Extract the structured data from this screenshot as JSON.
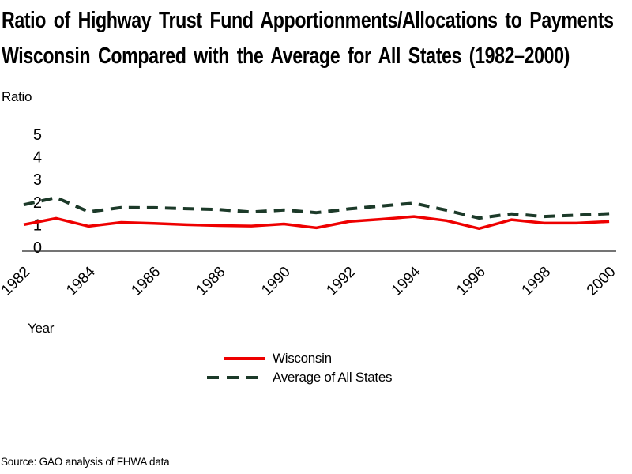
{
  "title": {
    "line1": "Ratio of Highway Trust Fund Apportionments/Allocations to Payments",
    "line2": "Wisconsin Compared with the Average for All States (1982–2000)"
  },
  "axis": {
    "y_label": "Ratio",
    "x_label": "Year"
  },
  "source_note": "Source: GAO analysis of FHWA data",
  "chart_data": {
    "type": "line",
    "title": "Ratio of Highway Trust Fund Apportionments/Allocations to Payments — Wisconsin Compared with the Average for All States (1982–2000)",
    "xlabel": "Year",
    "ylabel": "Ratio",
    "x": [
      1982,
      1983,
      1984,
      1985,
      1986,
      1987,
      1988,
      1989,
      1990,
      1991,
      1992,
      1993,
      1994,
      1995,
      1996,
      1997,
      1998,
      1999,
      2000
    ],
    "xticks": [
      1982,
      1984,
      1986,
      1988,
      1990,
      1992,
      1994,
      1996,
      1998,
      2000
    ],
    "yticks": [
      0,
      1,
      2,
      3,
      4,
      5
    ],
    "ylim": [
      0,
      5
    ],
    "grid": false,
    "legend_position": "bottom-center",
    "series": [
      {
        "name": "Wisconsin",
        "color": "#ee0000",
        "line_style": "solid",
        "values": [
          1.0,
          1.28,
          0.93,
          1.1,
          1.06,
          1.0,
          0.96,
          0.94,
          1.03,
          0.86,
          1.14,
          1.24,
          1.36,
          1.18,
          0.83,
          1.22,
          1.07,
          1.07,
          1.14
        ]
      },
      {
        "name": "Average of All States",
        "color": "#1c3a29",
        "line_style": "dashed",
        "values": [
          1.88,
          2.2,
          1.57,
          1.76,
          1.75,
          1.71,
          1.67,
          1.56,
          1.65,
          1.53,
          1.7,
          1.83,
          1.95,
          1.64,
          1.29,
          1.48,
          1.36,
          1.42,
          1.49
        ]
      }
    ]
  }
}
